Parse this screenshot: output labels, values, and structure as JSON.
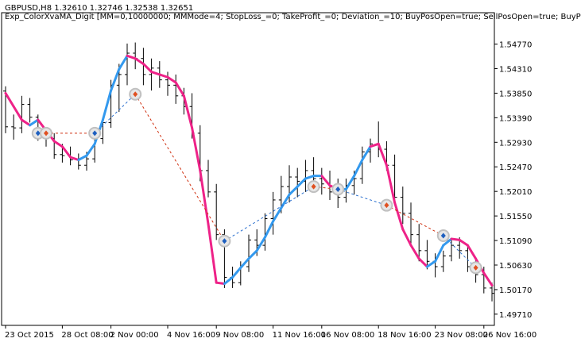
{
  "chart_data": {
    "type": "candlestick",
    "symbol_line": "GBPUSD,H8  1.32610 1.32746 1.32538 1.32651",
    "ea_line": "Exp_ColorXvaMA_Digit [MM=0,10000000; MMMode=4; StopLoss_=0; TakeProfit_=0; Deviation_=10; BuyPosOpen=true; SellPosOpen=true; BuyP",
    "x_tick_labels": [
      "23 Oct 2015",
      "28 Oct 08:00",
      "2 Nov 00:00",
      "4 Nov 16:00",
      "9 Nov 08:00",
      "11 Nov 16:00",
      "16 Nov 08:00",
      "18 Nov 16:00",
      "23 Nov 08:00",
      "26 Nov 16:00"
    ],
    "y_tick_labels": [
      "1.54770",
      "1.54310",
      "1.53850",
      "1.53390",
      "1.52930",
      "1.52470",
      "1.52010",
      "1.51550",
      "1.51090",
      "1.50630",
      "1.50170",
      "1.49710"
    ],
    "ylim": [
      1.495,
      1.5515
    ],
    "colors": {
      "bars": "#000000",
      "ma_up": "#3399ee",
      "ma_down": "#ee2288",
      "buy_marker": "#1e5fbf",
      "sell_marker": "#e05020",
      "marker_ring": "#c0c0c0",
      "trade_line_buy": "#2a6fcf",
      "trade_line_sell": "#d03010"
    },
    "candles": [
      [
        0,
        1.5389,
        1.5398,
        1.531,
        1.5322
      ],
      [
        1,
        1.5322,
        1.5345,
        1.5298,
        1.532
      ],
      [
        2,
        1.532,
        1.538,
        1.531,
        1.5364
      ],
      [
        3,
        1.5364,
        1.5376,
        1.533,
        1.534
      ],
      [
        4,
        1.534,
        1.5345,
        1.5296,
        1.531
      ],
      [
        5,
        1.531,
        1.5321,
        1.5285,
        1.53
      ],
      [
        6,
        1.53,
        1.531,
        1.5262,
        1.527
      ],
      [
        7,
        1.527,
        1.529,
        1.5255,
        1.5268
      ],
      [
        8,
        1.5268,
        1.5285,
        1.525,
        1.526
      ],
      [
        9,
        1.526,
        1.5272,
        1.5242,
        1.525
      ],
      [
        10,
        1.525,
        1.5275,
        1.524,
        1.5262
      ],
      [
        11,
        1.5262,
        1.531,
        1.5255,
        1.53
      ],
      [
        12,
        1.53,
        1.534,
        1.529,
        1.533
      ],
      [
        13,
        1.533,
        1.541,
        1.532,
        1.54
      ],
      [
        14,
        1.54,
        1.544,
        1.535,
        1.542
      ],
      [
        15,
        1.542,
        1.5478,
        1.54,
        1.546
      ],
      [
        16,
        1.546,
        1.548,
        1.543,
        1.545
      ],
      [
        17,
        1.545,
        1.547,
        1.54,
        1.542
      ],
      [
        18,
        1.542,
        1.545,
        1.539,
        1.5432
      ],
      [
        19,
        1.5432,
        1.5445,
        1.5395,
        1.541
      ],
      [
        20,
        1.541,
        1.5425,
        1.538,
        1.54
      ],
      [
        21,
        1.54,
        1.542,
        1.5365,
        1.538
      ],
      [
        22,
        1.538,
        1.5395,
        1.5345,
        1.536
      ],
      [
        23,
        1.536,
        1.5385,
        1.53,
        1.531
      ],
      [
        24,
        1.531,
        1.5325,
        1.522,
        1.524
      ],
      [
        25,
        1.524,
        1.526,
        1.519,
        1.52
      ],
      [
        26,
        1.52,
        1.5215,
        1.511,
        1.512
      ],
      [
        27,
        1.512,
        1.513,
        1.502,
        1.504
      ],
      [
        28,
        1.504,
        1.506,
        1.502,
        1.503
      ],
      [
        29,
        1.503,
        1.507,
        1.5025,
        1.506
      ],
      [
        30,
        1.506,
        1.512,
        1.505,
        1.511
      ],
      [
        31,
        1.511,
        1.513,
        1.508,
        1.51
      ],
      [
        32,
        1.51,
        1.516,
        1.509,
        1.515
      ],
      [
        33,
        1.515,
        1.52,
        1.512,
        1.5185
      ],
      [
        34,
        1.5185,
        1.523,
        1.516,
        1.521
      ],
      [
        35,
        1.521,
        1.525,
        1.518,
        1.5228
      ],
      [
        36,
        1.5228,
        1.5245,
        1.519,
        1.522
      ],
      [
        37,
        1.522,
        1.526,
        1.52,
        1.524
      ],
      [
        38,
        1.524,
        1.5265,
        1.521,
        1.5225
      ],
      [
        39,
        1.5225,
        1.5245,
        1.5195,
        1.5215
      ],
      [
        40,
        1.5215,
        1.524,
        1.5185,
        1.52
      ],
      [
        41,
        1.52,
        1.5225,
        1.517,
        1.519
      ],
      [
        42,
        1.519,
        1.5225,
        1.518,
        1.5212
      ],
      [
        43,
        1.5212,
        1.524,
        1.5195,
        1.5225
      ],
      [
        44,
        1.5225,
        1.5285,
        1.5215,
        1.5275
      ],
      [
        45,
        1.5275,
        1.53,
        1.5255,
        1.529
      ],
      [
        46,
        1.529,
        1.5332,
        1.5265,
        1.528
      ],
      [
        47,
        1.528,
        1.5295,
        1.524,
        1.525
      ],
      [
        48,
        1.525,
        1.527,
        1.518,
        1.519
      ],
      [
        49,
        1.519,
        1.521,
        1.514,
        1.516
      ],
      [
        50,
        1.516,
        1.518,
        1.51,
        1.512
      ],
      [
        51,
        1.512,
        1.514,
        1.507,
        1.509
      ],
      [
        52,
        1.509,
        1.511,
        1.5055,
        1.507
      ],
      [
        53,
        1.507,
        1.5085,
        1.504,
        1.506
      ],
      [
        54,
        1.506,
        1.509,
        1.505,
        1.508
      ],
      [
        55,
        1.508,
        1.511,
        1.507,
        1.51
      ],
      [
        56,
        1.51,
        1.5115,
        1.5075,
        1.509
      ],
      [
        57,
        1.509,
        1.51,
        1.505,
        1.506
      ],
      [
        58,
        1.506,
        1.5075,
        1.503,
        1.5045
      ],
      [
        59,
        1.5045,
        1.506,
        1.501,
        1.502
      ],
      [
        60,
        1.502,
        1.503,
        1.4995,
        1.501
      ]
    ],
    "ma": [
      [
        0,
        1.5385,
        "down"
      ],
      [
        1,
        1.536,
        "down"
      ],
      [
        2,
        1.5335,
        "down"
      ],
      [
        3,
        1.5325,
        "down"
      ],
      [
        4,
        1.5335,
        "up"
      ],
      [
        5,
        1.5315,
        "down"
      ],
      [
        6,
        1.5295,
        "down"
      ],
      [
        7,
        1.5285,
        "down"
      ],
      [
        8,
        1.5265,
        "down"
      ],
      [
        9,
        1.526,
        "down"
      ],
      [
        10,
        1.5268,
        "up"
      ],
      [
        11,
        1.529,
        "up"
      ],
      [
        12,
        1.5335,
        "up"
      ],
      [
        13,
        1.539,
        "up"
      ],
      [
        14,
        1.543,
        "up"
      ],
      [
        15,
        1.5455,
        "up"
      ],
      [
        16,
        1.545,
        "down"
      ],
      [
        17,
        1.544,
        "down"
      ],
      [
        18,
        1.5425,
        "down"
      ],
      [
        19,
        1.542,
        "down"
      ],
      [
        20,
        1.5415,
        "down"
      ],
      [
        21,
        1.5405,
        "down"
      ],
      [
        22,
        1.538,
        "down"
      ],
      [
        23,
        1.532,
        "down"
      ],
      [
        24,
        1.524,
        "down"
      ],
      [
        25,
        1.514,
        "down"
      ],
      [
        26,
        1.503,
        "down"
      ],
      [
        27,
        1.5028,
        "down"
      ],
      [
        28,
        1.504,
        "up"
      ],
      [
        29,
        1.5058,
        "up"
      ],
      [
        30,
        1.5075,
        "up"
      ],
      [
        31,
        1.509,
        "up"
      ],
      [
        32,
        1.5115,
        "up"
      ],
      [
        33,
        1.5145,
        "up"
      ],
      [
        34,
        1.517,
        "up"
      ],
      [
        35,
        1.5195,
        "up"
      ],
      [
        36,
        1.521,
        "up"
      ],
      [
        37,
        1.5225,
        "up"
      ],
      [
        38,
        1.523,
        "up"
      ],
      [
        39,
        1.523,
        "up"
      ],
      [
        40,
        1.5212,
        "down"
      ],
      [
        41,
        1.5205,
        "down"
      ],
      [
        42,
        1.5205,
        "up"
      ],
      [
        43,
        1.523,
        "up"
      ],
      [
        44,
        1.526,
        "up"
      ],
      [
        45,
        1.5285,
        "up"
      ],
      [
        46,
        1.529,
        "down"
      ],
      [
        47,
        1.525,
        "down"
      ],
      [
        48,
        1.518,
        "down"
      ],
      [
        49,
        1.513,
        "down"
      ],
      [
        50,
        1.51,
        "down"
      ],
      [
        51,
        1.5075,
        "down"
      ],
      [
        52,
        1.506,
        "down"
      ],
      [
        53,
        1.507,
        "up"
      ],
      [
        54,
        1.51,
        "up"
      ],
      [
        55,
        1.5112,
        "up"
      ],
      [
        56,
        1.511,
        "down"
      ],
      [
        57,
        1.51,
        "down"
      ],
      [
        58,
        1.5075,
        "down"
      ],
      [
        59,
        1.5048,
        "down"
      ],
      [
        60,
        1.5025,
        "down"
      ]
    ],
    "trades": [
      {
        "kind": "buy",
        "bar": 4,
        "price": 1.531
      },
      {
        "kind": "sell",
        "bar": 5,
        "price": 1.531
      },
      {
        "kind": "buy",
        "bar": 11,
        "price": 1.531
      },
      {
        "kind": "sell",
        "bar": 16,
        "price": 1.5383
      },
      {
        "kind": "buy",
        "bar": 27,
        "price": 1.5108
      },
      {
        "kind": "sell",
        "bar": 38,
        "price": 1.521
      },
      {
        "kind": "buy",
        "bar": 41,
        "price": 1.5205
      },
      {
        "kind": "sell",
        "bar": 47,
        "price": 1.5175
      },
      {
        "kind": "buy",
        "bar": 54,
        "price": 1.5118
      },
      {
        "kind": "sell",
        "bar": 58,
        "price": 1.5058
      }
    ],
    "trade_links": [
      [
        0,
        1
      ],
      [
        1,
        2
      ],
      [
        2,
        3
      ],
      [
        3,
        4
      ],
      [
        4,
        5
      ],
      [
        5,
        6
      ],
      [
        6,
        7
      ],
      [
        7,
        8
      ],
      [
        8,
        9
      ]
    ]
  }
}
